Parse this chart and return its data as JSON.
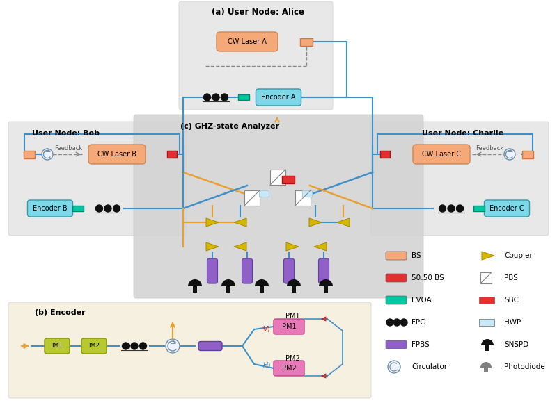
{
  "bg_alice": "#e8e8e8",
  "bg_bob": "#e8e8e8",
  "bg_charlie": "#e8e8e8",
  "bg_encoder": "#f5f0e0",
  "color_laser": "#f5a878",
  "color_encoder": "#7dd8e8",
  "color_evoa": "#00c8a0",
  "color_bs": "#f5a878",
  "color_50bs": "#e03030",
  "color_fpbs": "#9060c8",
  "color_im": "#b8c830",
  "color_pm": "#e878b8",
  "color_line": "#4090c8",
  "color_orange": "#e8a030",
  "color_gray": "#888888",
  "color_circ": "#7090a8",
  "title_alice": "(a) User Node: Alice",
  "title_bob": "User Node: Bob",
  "title_charlie": "User Node: Charlie",
  "title_ghz": "(c) GHZ-state Analyzer",
  "title_encoder": "(b) Encoder",
  "legend_left": [
    {
      "label": "BS",
      "type": "rrect",
      "color": "#f5a878"
    },
    {
      "label": "50:50 BS",
      "type": "rrect",
      "color": "#e03030"
    },
    {
      "label": "EVOA",
      "type": "rrect",
      "color": "#00c8a0"
    },
    {
      "label": "FPC",
      "type": "dots",
      "color": "#101010"
    },
    {
      "label": "FPBS",
      "type": "rrect",
      "color": "#9060c8"
    },
    {
      "label": "Circulator",
      "type": "circ",
      "color": "#7090a8"
    }
  ],
  "legend_right": [
    {
      "label": "Coupler",
      "type": "coupler",
      "color": "#d4b800"
    },
    {
      "label": "PBS",
      "type": "pbs",
      "color": "#cccccc"
    },
    {
      "label": "SBC",
      "type": "rect",
      "color": "#e83030"
    },
    {
      "label": "HWP",
      "type": "rect",
      "color": "#c8e8f8"
    },
    {
      "label": "SNSPD",
      "type": "snspd",
      "color": "#101010"
    },
    {
      "label": "Photodiode",
      "type": "photodiode",
      "color": "#808080"
    }
  ]
}
